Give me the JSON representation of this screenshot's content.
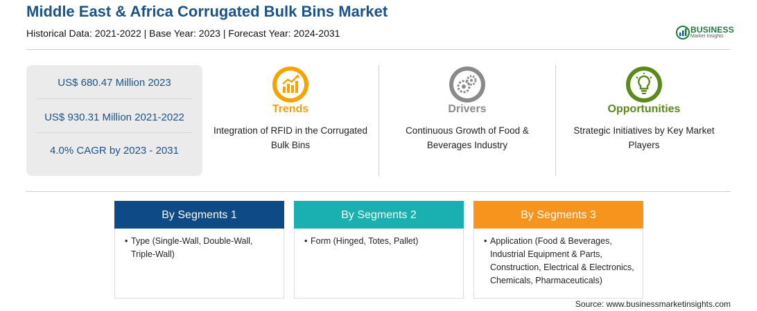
{
  "header": {
    "title": "Middle East & Africa Corrugated Bulk Bins Market",
    "subtitle": "Historical Data: 2021-2022 | Base Year: 2023 | Forecast Year: 2024-2031"
  },
  "logo": {
    "word": "BUSINESS",
    "sub": "Market Insights",
    "colors": {
      "green": "#1a7a3e",
      "blue": "#1b5387"
    }
  },
  "stats": [
    "US$ 680.47 Million 2023",
    "US$ 930.31 Million 2021-2022",
    "4.0% CAGR by 2023 - 2031"
  ],
  "factors": [
    {
      "heading": "Trends",
      "icon": "trend-chart-icon",
      "color": "#f5a300",
      "description": "Integration of RFID in the Corrugated Bulk Bins"
    },
    {
      "heading": "Drivers",
      "icon": "gears-icon",
      "color": "#8a8a8a",
      "description": "Continuous Growth of Food & Beverages Industry"
    },
    {
      "heading": "Opportunities",
      "icon": "lightbulb-icon",
      "color": "#5a8a1a",
      "description": "Strategic Initiatives by Key Market Players"
    }
  ],
  "segments": [
    {
      "title": "By Segments 1",
      "color": "#0d4a86",
      "items": [
        "Type (Single-Wall, Double-Wall, Triple-Wall)"
      ]
    },
    {
      "title": "By Segments 2",
      "color": "#1aafb0",
      "items": [
        "Form (Hinged, Totes, Pallet)"
      ]
    },
    {
      "title": "By Segments 3",
      "color": "#f7941d",
      "items": [
        "Application (Food & Beverages, Industrial Equipment & Parts, Construction, Electrical & Electronics, Chemicals, Pharmaceuticals)"
      ]
    }
  ],
  "source": "Source: www.businessmarketinsights.com"
}
